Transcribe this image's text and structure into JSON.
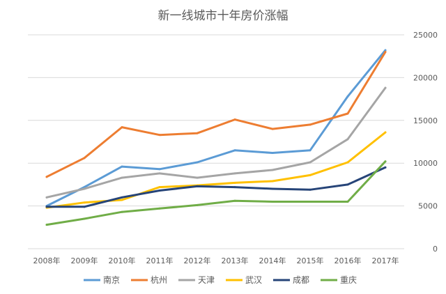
{
  "chart_data": {
    "type": "line",
    "title": "新一线城市十年房价涨幅",
    "categories": [
      "2008年",
      "2009年",
      "2010年",
      "2011年",
      "2012年",
      "2013年",
      "2014年",
      "2015年",
      "2016年",
      "2017年"
    ],
    "ylim": [
      0,
      25000
    ],
    "yticks": [
      "0",
      "5000",
      "10000",
      "15000",
      "20000",
      "25000"
    ],
    "y_axis_side": "right",
    "grid": true,
    "legend_position": "bottom",
    "series": [
      {
        "name": "南京",
        "color": "#5b9bd5",
        "values": [
          5000,
          7200,
          9600,
          9300,
          10100,
          11500,
          11200,
          11500,
          17800,
          23200
        ]
      },
      {
        "name": "杭州",
        "color": "#ed7d31",
        "values": [
          8400,
          10600,
          14200,
          13300,
          13500,
          15100,
          14000,
          14500,
          15800,
          23000
        ]
      },
      {
        "name": "天津",
        "color": "#a5a5a5",
        "values": [
          6000,
          7000,
          8300,
          8800,
          8300,
          8800,
          9200,
          10100,
          12800,
          18800
        ]
      },
      {
        "name": "武汉",
        "color": "#ffc000",
        "values": [
          4800,
          5400,
          5700,
          7200,
          7400,
          7700,
          7900,
          8600,
          10100,
          13600
        ]
      },
      {
        "name": "成都",
        "color": "#264478",
        "values": [
          4900,
          4900,
          6000,
          6800,
          7300,
          7200,
          7000,
          6900,
          7500,
          9500
        ]
      },
      {
        "name": "重庆",
        "color": "#70ad47",
        "values": [
          2800,
          3500,
          4300,
          4700,
          5100,
          5600,
          5500,
          5500,
          5500,
          10200
        ]
      }
    ]
  }
}
